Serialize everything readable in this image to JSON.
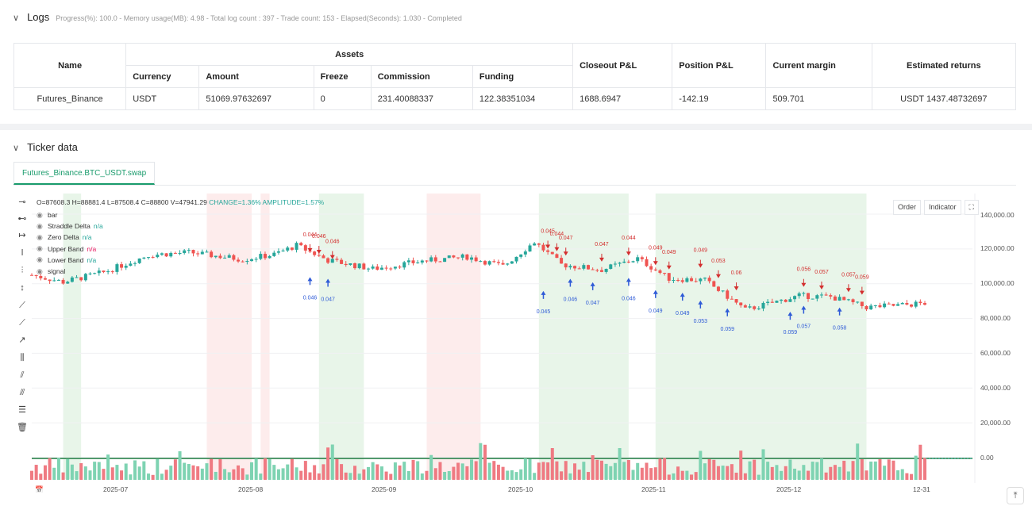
{
  "logs": {
    "title": "Logs",
    "summary": "Progress(%): 100.0 - Memory usage(MB): 4.98 - Total log count : 397 - Trade count: 153 - Elapsed(Seconds): 1.030 - Completed",
    "table": {
      "h_name": "Name",
      "h_assets": "Assets",
      "h_closeout": "Closeout P&L",
      "h_position": "Position P&L",
      "h_margin": "Current margin",
      "h_returns": "Estimated returns",
      "sub": [
        "Currency",
        "Amount",
        "Freeze",
        "Commission",
        "Funding"
      ],
      "row": {
        "name": "Futures_Binance",
        "currency": "USDT",
        "amount": "51069.97632697",
        "freeze": "0",
        "commission": "231.40088337",
        "funding": "122.38351034",
        "closeout": "1688.6947",
        "position": "-142.19",
        "margin": "509.701",
        "returns": "USDT 1437.48732697"
      }
    }
  },
  "ticker": {
    "title": "Ticker data",
    "tab": "Futures_Binance.BTC_USDT.swap",
    "ohlc_prefix": "O=87608.3 H=88881.4 L=87508.4 C=88800 V=47941.29",
    "ohlc_change": "CHANGE=1.36% AMPLITUDE=1.57%",
    "legend": [
      {
        "label": "bar",
        "value": ""
      },
      {
        "label": "Straddle Delta",
        "value": "n/a"
      },
      {
        "label": "Zero Delta",
        "value": "n/a"
      },
      {
        "label": "Upper Band",
        "value": "n/a"
      },
      {
        "label": "Lower Band",
        "value": "n/a"
      },
      {
        "label": "signal",
        "value": ""
      }
    ],
    "buttons": {
      "order": "Order",
      "indicator": "Indicator",
      "expand": "⛶"
    }
  },
  "chart_data": {
    "type": "candlestick",
    "ylim": [
      0,
      150000
    ],
    "y_ticks": [
      "140,000.00",
      "120,000.00",
      "100,000.00",
      "80,000.00",
      "60,000.00",
      "40,000.00",
      "20,000.00",
      "0.00"
    ],
    "x_ticks": [
      "2025-07",
      "2025-08",
      "2025-09",
      "2025-10",
      "2025-11",
      "2025-12",
      "12-31"
    ],
    "colors": {
      "up": "#26a69a",
      "down": "#ef5350",
      "long": "#2f5bd7",
      "short": "#d32f2f",
      "green_zone": "#e8f5e9",
      "red_zone": "#fdecec"
    },
    "price_path": [
      {
        "date": "2025-06-15",
        "price": 105000
      },
      {
        "date": "2025-06-22",
        "price": 101000
      },
      {
        "date": "2025-07-01",
        "price": 106500
      },
      {
        "date": "2025-07-11",
        "price": 116500
      },
      {
        "date": "2025-07-20",
        "price": 118000
      },
      {
        "date": "2025-08-01",
        "price": 114000
      },
      {
        "date": "2025-08-08",
        "price": 116800
      },
      {
        "date": "2025-08-13",
        "price": 122000
      },
      {
        "date": "2025-08-20",
        "price": 113500
      },
      {
        "date": "2025-08-30",
        "price": 108500
      },
      {
        "date": "2025-09-10",
        "price": 113000
      },
      {
        "date": "2025-09-20",
        "price": 115500
      },
      {
        "date": "2025-09-28",
        "price": 110000
      },
      {
        "date": "2025-10-05",
        "price": 124000
      },
      {
        "date": "2025-10-11",
        "price": 111000
      },
      {
        "date": "2025-10-20",
        "price": 108000
      },
      {
        "date": "2025-10-28",
        "price": 114500
      },
      {
        "date": "2025-11-04",
        "price": 103000
      },
      {
        "date": "2025-11-12",
        "price": 102000
      },
      {
        "date": "2025-11-21",
        "price": 85000
      },
      {
        "date": "2025-12-03",
        "price": 93000
      },
      {
        "date": "2025-12-10",
        "price": 92500
      },
      {
        "date": "2025-12-18",
        "price": 86500
      },
      {
        "date": "2025-12-25",
        "price": 87500
      },
      {
        "date": "2025-12-31",
        "price": 88800
      }
    ],
    "zones": [
      {
        "start": "2025-06-22",
        "end": "2025-06-26",
        "color": "green"
      },
      {
        "start": "2025-07-24",
        "end": "2025-08-03",
        "color": "red"
      },
      {
        "start": "2025-08-05",
        "end": "2025-08-07",
        "color": "red"
      },
      {
        "start": "2025-08-18",
        "end": "2025-08-28",
        "color": "green"
      },
      {
        "start": "2025-09-11",
        "end": "2025-09-23",
        "color": "red"
      },
      {
        "start": "2025-10-06",
        "end": "2025-10-26",
        "color": "green"
      },
      {
        "start": "2025-11-01",
        "end": "2025-12-18",
        "color": "green"
      }
    ],
    "signals_short": [
      {
        "date": "2025-08-16",
        "value": "0.044",
        "price": 120000
      },
      {
        "date": "2025-08-18",
        "value": "0.046",
        "price": 119000
      },
      {
        "date": "2025-08-21",
        "value": "0.046",
        "price": 116000
      },
      {
        "date": "2025-10-08",
        "value": "0.045",
        "price": 122000
      },
      {
        "date": "2025-10-10",
        "value": "0.044",
        "price": 120500
      },
      {
        "date": "2025-10-12",
        "value": "0.047",
        "price": 118000
      },
      {
        "date": "2025-10-20",
        "value": "0.047",
        "price": 114500
      },
      {
        "date": "2025-10-26",
        "value": "0.044",
        "price": 118000
      },
      {
        "date": "2025-11-01",
        "value": "0.049",
        "price": 112500
      },
      {
        "date": "2025-11-04",
        "value": "0.049",
        "price": 110000
      },
      {
        "date": "2025-11-11",
        "value": "0.049",
        "price": 111000
      },
      {
        "date": "2025-11-15",
        "value": "0.053",
        "price": 105000
      },
      {
        "date": "2025-11-19",
        "value": "0.06",
        "price": 98000
      },
      {
        "date": "2025-12-04",
        "value": "0.056",
        "price": 100000
      },
      {
        "date": "2025-12-08",
        "value": "0.057",
        "price": 98500
      },
      {
        "date": "2025-12-14",
        "value": "0.057",
        "price": 97000
      },
      {
        "date": "2025-12-17",
        "value": "0.059",
        "price": 95500
      }
    ],
    "signals_long": [
      {
        "date": "2025-08-16",
        "value": "0.046",
        "price": 102000
      },
      {
        "date": "2025-08-20",
        "value": "0.047",
        "price": 101000
      },
      {
        "date": "2025-10-07",
        "value": "0.045",
        "price": 94000
      },
      {
        "date": "2025-10-13",
        "value": "0.046",
        "price": 101000
      },
      {
        "date": "2025-10-18",
        "value": "0.047",
        "price": 99000
      },
      {
        "date": "2025-10-26",
        "value": "0.046",
        "price": 101500
      },
      {
        "date": "2025-11-01",
        "value": "0.049",
        "price": 94500
      },
      {
        "date": "2025-11-07",
        "value": "0.049",
        "price": 93000
      },
      {
        "date": "2025-11-11",
        "value": "0.053",
        "price": 88500
      },
      {
        "date": "2025-11-17",
        "value": "0.059",
        "price": 84000
      },
      {
        "date": "2025-12-01",
        "value": "0.059",
        "price": 82000
      },
      {
        "date": "2025-12-04",
        "value": "0.057",
        "price": 85500
      },
      {
        "date": "2025-12-12",
        "value": "0.058",
        "price": 84500
      }
    ]
  }
}
